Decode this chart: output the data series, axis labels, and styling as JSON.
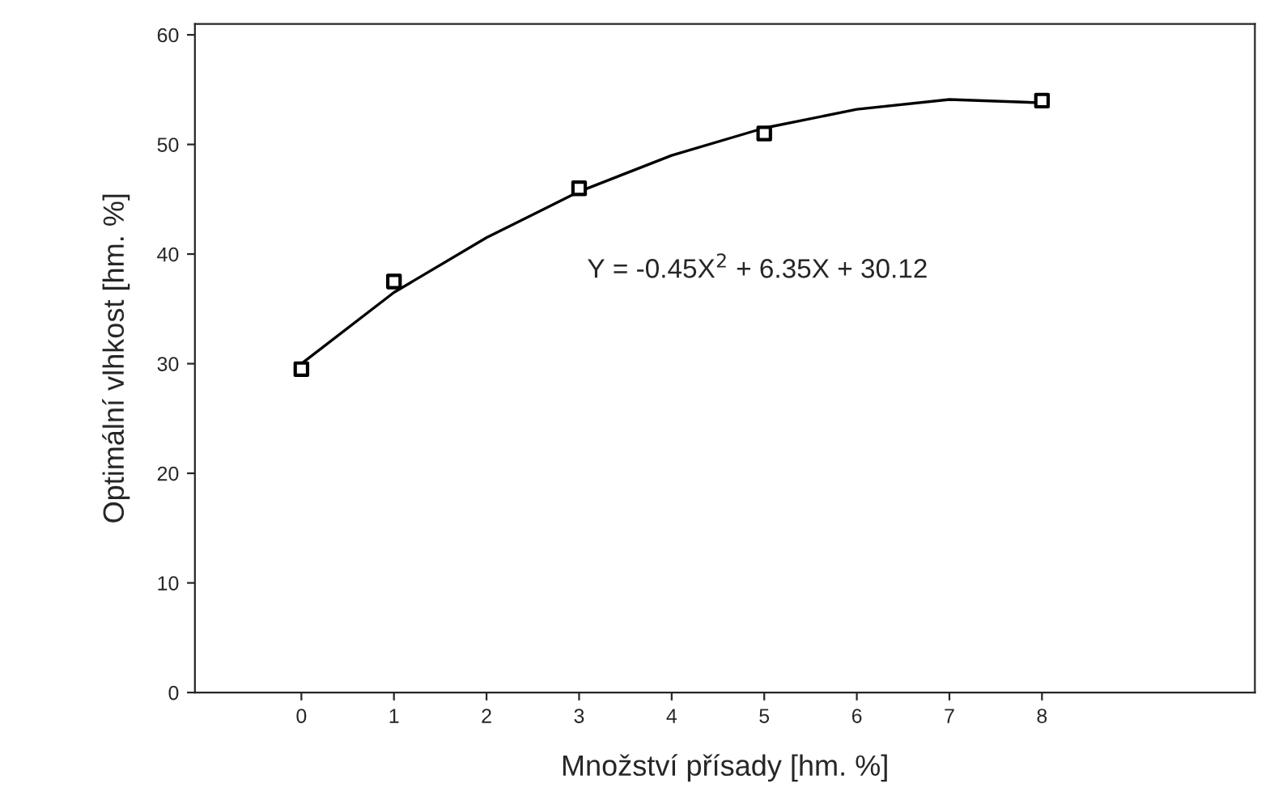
{
  "chart_data": {
    "type": "scatter",
    "xlabel": "Množství přísady [hm. %]",
    "ylabel": "Optimální vlhkost [hm. %]",
    "series": [
      {
        "color": "#000000",
        "marker": "square",
        "x": [
          0,
          1,
          3,
          5,
          8
        ],
        "values": [
          29.5,
          37.5,
          46,
          51,
          54
        ]
      },
      {
        "type": "line",
        "color": "#000000",
        "marker": "none",
        "line_style": "solid",
        "x": [
          0,
          1,
          2,
          3,
          4,
          5,
          6,
          7,
          8
        ],
        "values": [
          30,
          36.5,
          41.5,
          45.7,
          49,
          51.5,
          53.2,
          54.1,
          53.8
        ]
      }
    ],
    "annotations": [
      "Y = -0.45X$^{2}$ + 6.35X + 30.12"
    ],
    "xlim": [
      -1.15,
      10.3
    ],
    "xticks": [
      0,
      1,
      2,
      3,
      4,
      5,
      6,
      7,
      8
    ],
    "ylim": [
      0,
      61
    ],
    "yticks": [
      0,
      10,
      20,
      30,
      40,
      50,
      60
    ],
    "grid": false,
    "legend": false
  }
}
